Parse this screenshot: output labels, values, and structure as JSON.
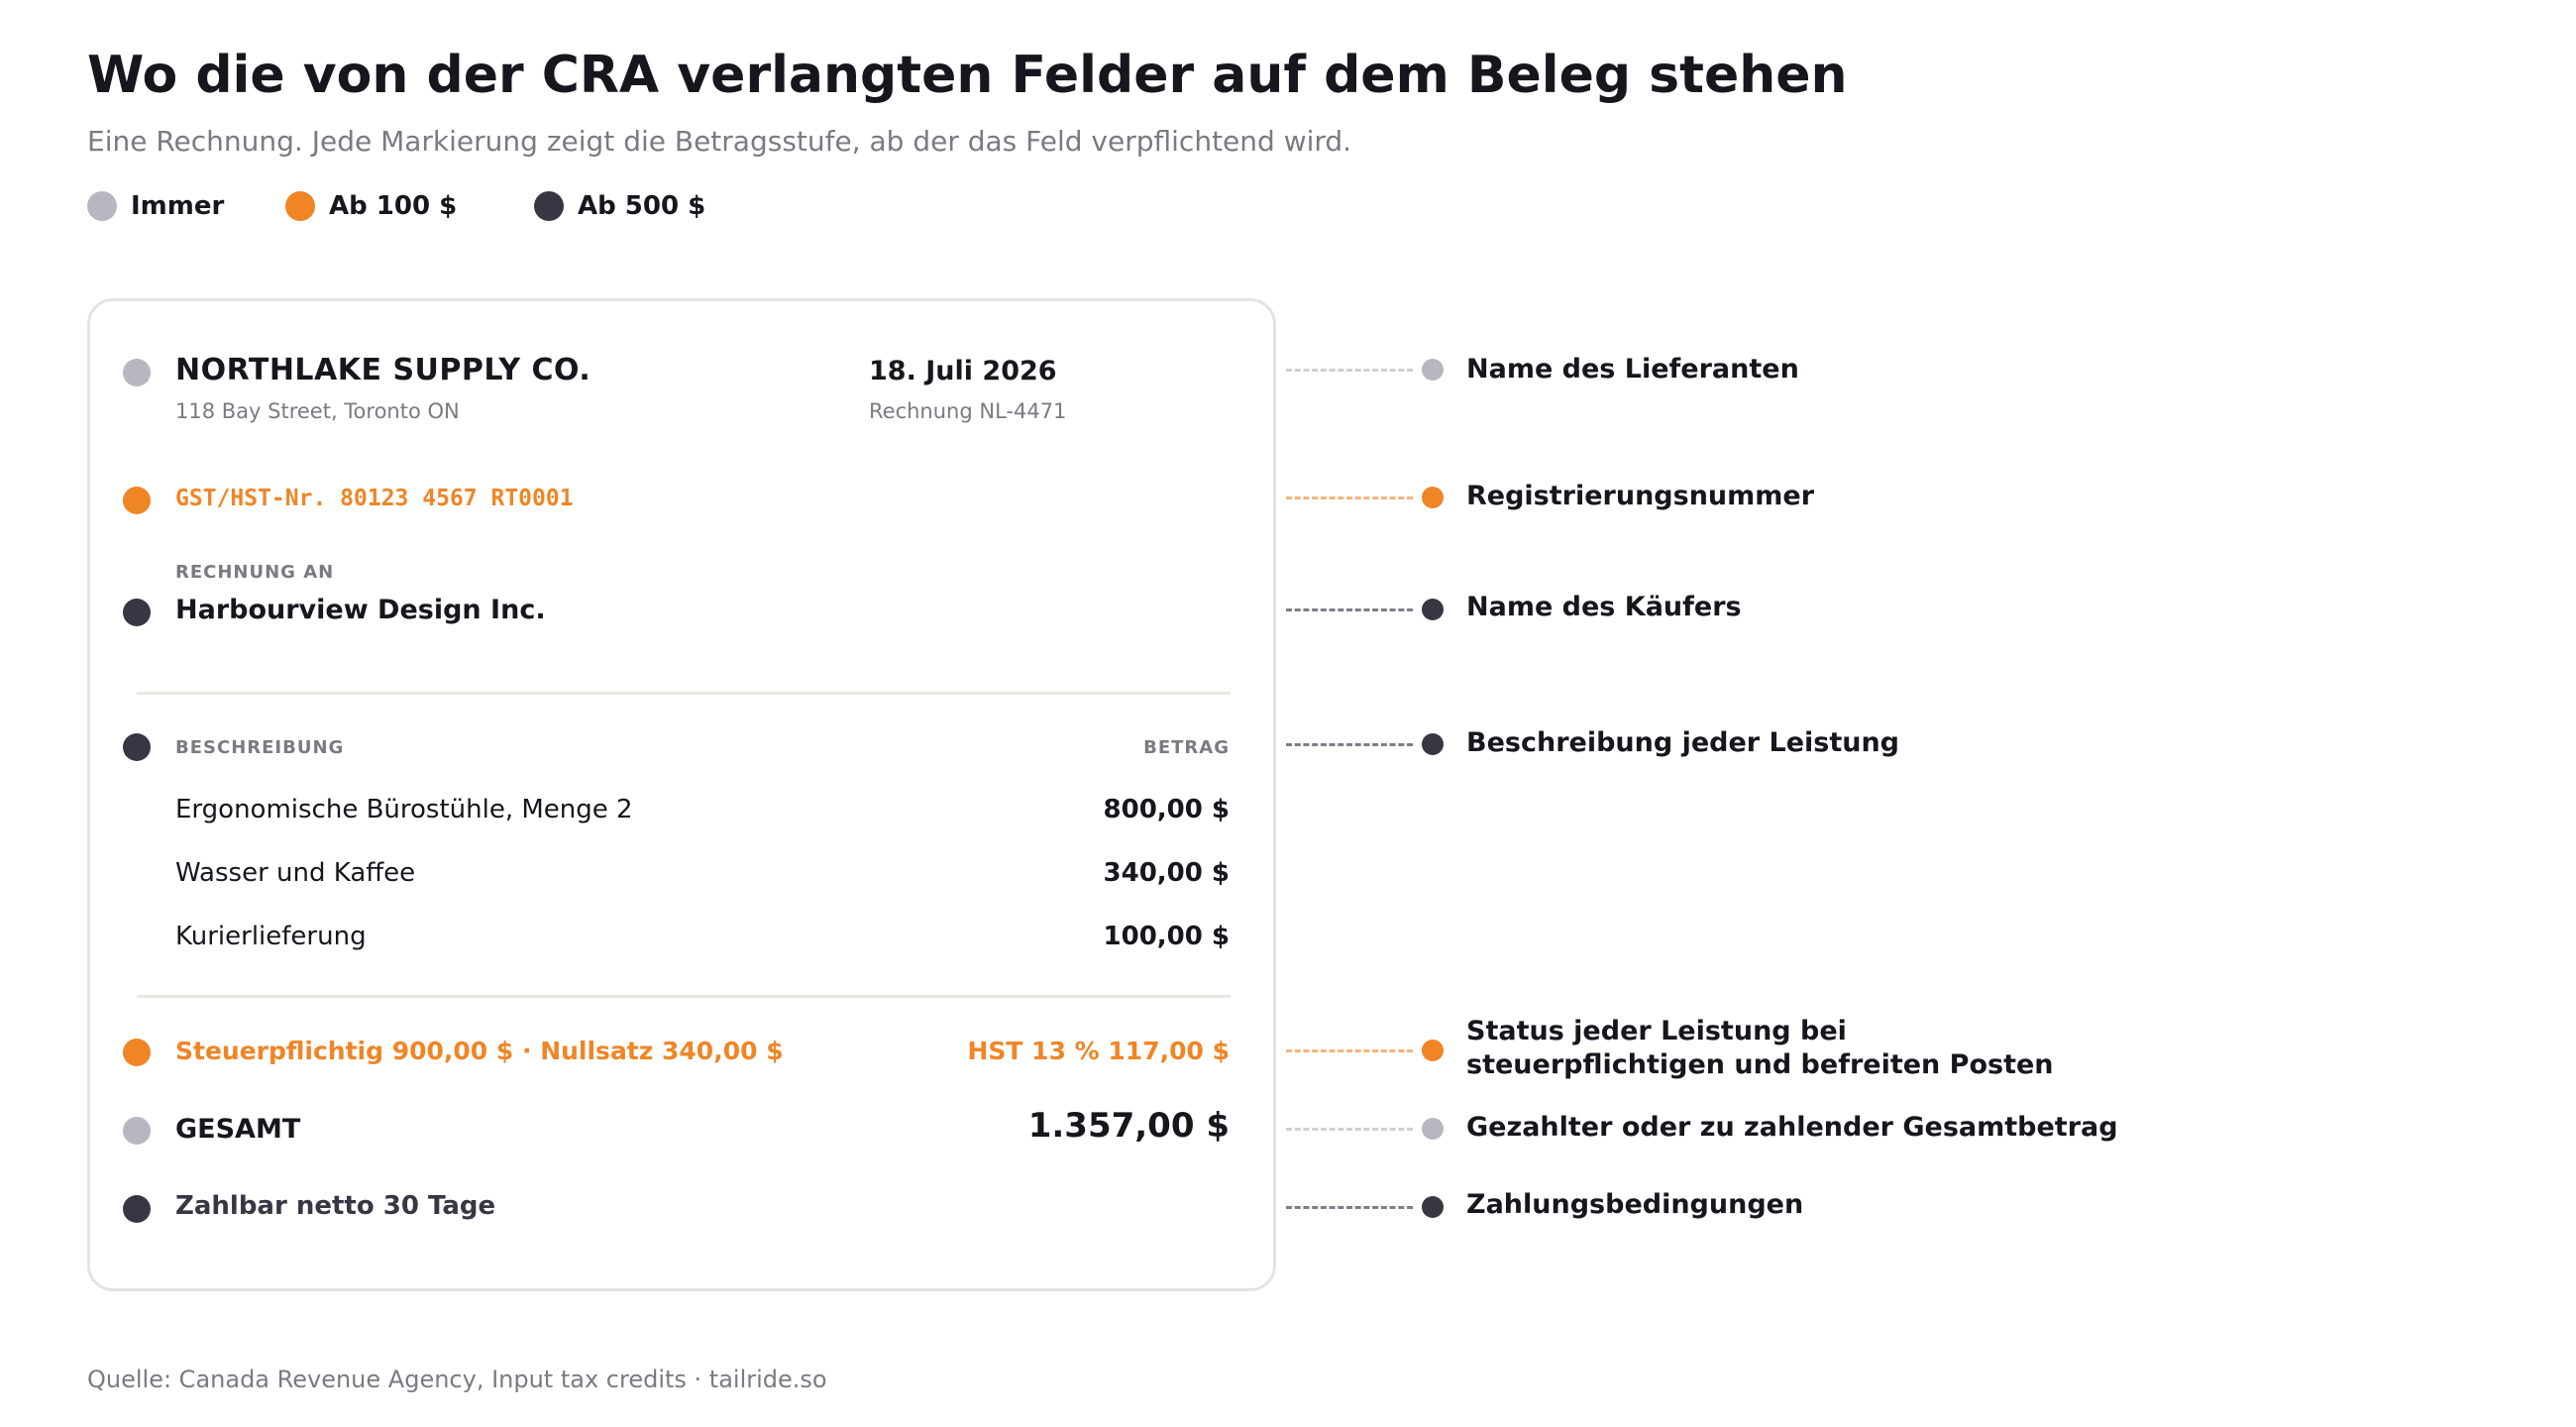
{
  "title": "Wo die von der CRA verlangten Felder auf dem Beleg stehen",
  "subtitle": "Eine Rechnung. Jede Markierung zeigt die Betragsstufe, ab der das Feld verpflichtend wird.",
  "colors": {
    "immer": "#b7b7c0",
    "ab100": "#f08526",
    "ab500": "#373744"
  },
  "legend": [
    {
      "label": "Immer",
      "tier": "immer"
    },
    {
      "label": "Ab 100 $",
      "tier": "ab100"
    },
    {
      "label": "Ab 500 $",
      "tier": "ab500"
    }
  ],
  "invoice": {
    "supplier_name": "NORTHLAKE SUPPLY CO.",
    "supplier_address": "118 Bay Street, Toronto ON",
    "date": "18. Juli 2026",
    "invoice_number": "Rechnung NL-4471",
    "tax_number": "GST/HST-Nr. 80123 4567 RT0001",
    "bill_to_label": "RECHNUNG AN",
    "buyer_name": "Harbourview Design Inc.",
    "col_description": "BESCHREIBUNG",
    "col_amount": "BETRAG",
    "items": [
      {
        "description": "Ergonomische Bürostühle, Menge 2",
        "amount": "800,00 $"
      },
      {
        "description": "Wasser und Kaffee",
        "amount": "340,00 $"
      },
      {
        "description": "Kurierlieferung",
        "amount": "100,00 $"
      }
    ],
    "tax_status": "Steuerpflichtig 900,00 $ · Nullsatz 340,00 $",
    "tax_amount": "HST 13 % 117,00 $",
    "total_label": "GESAMT",
    "total_amount": "1.357,00 $",
    "terms": "Zahlbar netto 30 Tage"
  },
  "callouts": [
    {
      "label": "Name des Lieferanten",
      "tier": "immer"
    },
    {
      "label": "Registrierungsnummer",
      "tier": "ab100"
    },
    {
      "label": "Name des Käufers",
      "tier": "ab500"
    },
    {
      "label": "Beschreibung jeder Leistung",
      "tier": "ab500"
    },
    {
      "label_line1": "Status jeder Leistung bei",
      "label_line2": "steuerpflichtigen und befreiten Posten",
      "tier": "ab100"
    },
    {
      "label": "Gezahlter oder zu zahlender Gesamtbetrag",
      "tier": "immer"
    },
    {
      "label": "Zahlungsbedingungen",
      "tier": "ab500"
    }
  ],
  "source": "Quelle: Canada Revenue Agency, Input tax credits · tailride.so"
}
